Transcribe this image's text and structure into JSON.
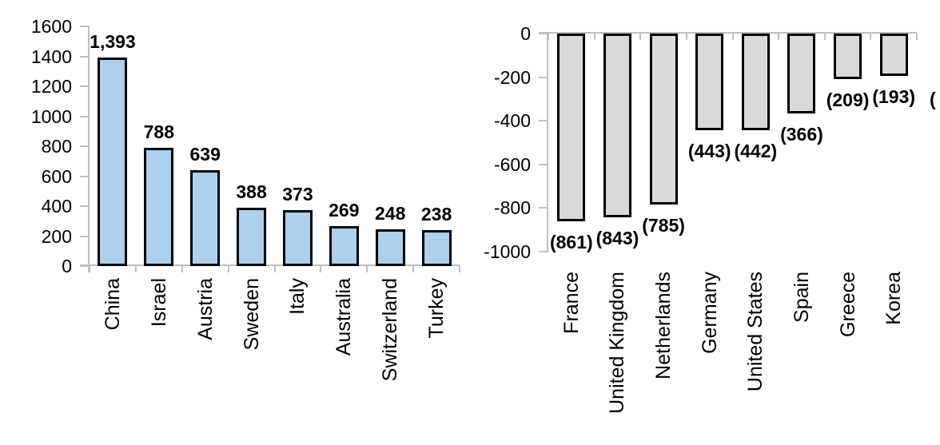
{
  "chart_data": [
    {
      "type": "bar",
      "name": "positive-flows-chart",
      "title": "",
      "xlabel": "",
      "ylabel": "",
      "categories": [
        "China",
        "Israel",
        "Austria",
        "Sweden",
        "Italy",
        "Australia",
        "Switzerland",
        "Turkey"
      ],
      "values": [
        1393,
        788,
        639,
        388,
        373,
        269,
        248,
        238
      ],
      "value_labels": [
        "1,393",
        "788",
        "639",
        "388",
        "373",
        "269",
        "248",
        "238"
      ],
      "ylim": [
        0,
        1600
      ],
      "ytick_values": [
        1600,
        1400,
        1200,
        1000,
        800,
        600,
        400,
        200,
        0
      ],
      "ytick_labels": [
        "1600",
        "1400",
        "1200",
        "1000",
        "800",
        "600",
        "400",
        "200",
        "0"
      ],
      "grid": false,
      "legend": false,
      "bar_fill": "#ADD0EC",
      "bar_border": "#000000",
      "axis_color": "#bfbfbf"
    },
    {
      "type": "bar",
      "name": "negative-flows-chart",
      "title": "",
      "xlabel": "",
      "ylabel": "",
      "categories": [
        "France",
        "United Kingdom",
        "Netherlands",
        "Germany",
        "United States",
        "Spain",
        "Greece",
        "Korea"
      ],
      "values": [
        -861,
        -843,
        -785,
        -443,
        -442,
        -366,
        -209,
        -193
      ],
      "value_labels": [
        "(861)",
        "(843)",
        "(785)",
        "(443)",
        "(442)",
        "(366)",
        "(209)",
        "(193)"
      ],
      "ylim": [
        -1000,
        0
      ],
      "ytick_values": [
        0,
        -200,
        -400,
        -600,
        -800,
        -1000
      ],
      "ytick_labels": [
        "0",
        "-200",
        "-400",
        "-600",
        "-800",
        "-1000"
      ],
      "grid": false,
      "legend": false,
      "bar_fill": "#D9D9D9",
      "bar_border": "#000000",
      "axis_color": "#bfbfbf"
    }
  ],
  "fragments": {
    "cropped_label": "("
  }
}
